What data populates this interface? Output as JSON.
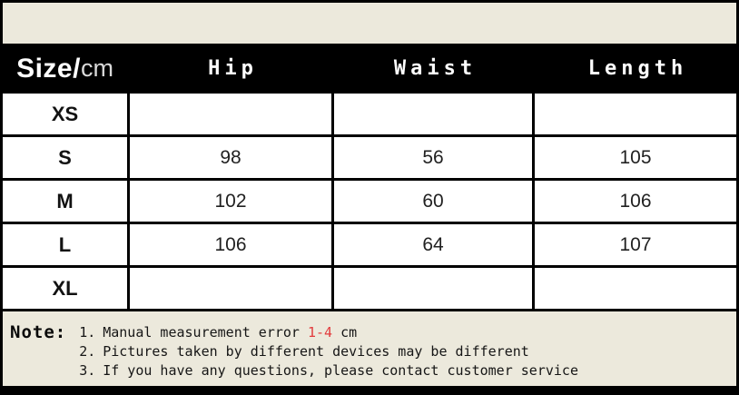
{
  "header": {
    "size_label": "Size/",
    "size_unit": "cm",
    "columns": [
      "Hip",
      "Waist",
      "Length"
    ]
  },
  "table": {
    "rows": [
      {
        "size": "XS",
        "hip": "",
        "waist": "",
        "length": ""
      },
      {
        "size": "S",
        "hip": "98",
        "waist": "56",
        "length": "105"
      },
      {
        "size": "M",
        "hip": "102",
        "waist": "60",
        "length": "106"
      },
      {
        "size": "L",
        "hip": "106",
        "waist": "64",
        "length": "107"
      },
      {
        "size": "XL",
        "hip": "",
        "waist": "",
        "length": ""
      }
    ]
  },
  "note": {
    "label": "Note:",
    "items": [
      {
        "num": "1.",
        "pre": "Manual measurement error ",
        "highlight": "1-4",
        "post": " cm"
      },
      {
        "num": "2.",
        "pre": "Pictures taken by different devices may be different",
        "highlight": "",
        "post": ""
      },
      {
        "num": "3.",
        "pre": "If you have any questions, please contact customer service",
        "highlight": "",
        "post": ""
      }
    ]
  },
  "colors": {
    "cream": "#ece9dc",
    "black": "#000000",
    "cell_white": "#ffffff",
    "highlight_red": "#e23b3d"
  }
}
